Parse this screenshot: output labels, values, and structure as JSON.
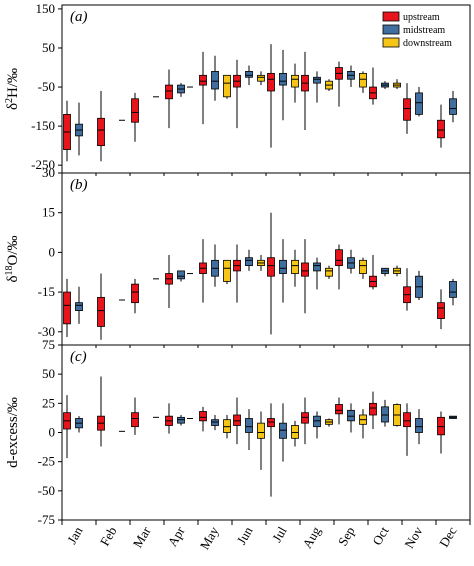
{
  "colors": {
    "upstream": "#e8141c",
    "midstream": "#3f6e9f",
    "downstream": "#f5c518",
    "line": "#000000"
  },
  "chart_data": [
    {
      "type": "box",
      "panel_label": "(a)",
      "ylabel_html": "δ<sup>2</sup>H/‰",
      "ylabel_parts": [
        "δ",
        "2",
        "H/‰"
      ],
      "ylim": [
        -270,
        160
      ],
      "yticks": [
        150,
        50,
        -50,
        -150,
        -250
      ],
      "categories": [
        "Jan",
        "Feb",
        "Mar",
        "Apr",
        "May",
        "Jun",
        "Jul",
        "Aug",
        "Sep",
        "Oct",
        "Nov",
        "Dec"
      ],
      "legend": {
        "position": "top-right",
        "entries": [
          "upstream",
          "midstream",
          "downstream"
        ]
      },
      "series": [
        {
          "name": "upstream",
          "boxes": [
            {
              "month": "Jan",
              "min": -240,
              "q1": -210,
              "median": -165,
              "q3": -120,
              "max": -85
            },
            {
              "month": "Feb",
              "min": -240,
              "q1": -200,
              "median": -160,
              "q3": -130,
              "max": -60
            },
            {
              "month": "Mar",
              "min": -190,
              "q1": -140,
              "median": -115,
              "q3": -80,
              "max": -65
            },
            {
              "month": "Apr",
              "min": -155,
              "q1": -80,
              "median": -60,
              "q3": -45,
              "max": -5
            },
            {
              "month": "May",
              "min": -145,
              "q1": -45,
              "median": -35,
              "q3": -20,
              "max": 40
            },
            {
              "month": "Jun",
              "min": -155,
              "q1": -50,
              "median": -35,
              "q3": -20,
              "max": 20
            },
            {
              "month": "Jul",
              "min": -205,
              "q1": -60,
              "median": -30,
              "q3": -15,
              "max": 60
            },
            {
              "month": "Aug",
              "min": -160,
              "q1": -60,
              "median": -40,
              "q3": -20,
              "max": 40
            },
            {
              "month": "Sep",
              "min": -100,
              "q1": -30,
              "median": -15,
              "q3": 0,
              "max": 15
            },
            {
              "month": "Oct",
              "min": -95,
              "q1": -80,
              "median": -65,
              "q3": -50,
              "max": 0
            },
            {
              "month": "Nov",
              "min": -170,
              "q1": -135,
              "median": -105,
              "q3": -80,
              "max": -40
            },
            {
              "month": "Dec",
              "min": -205,
              "q1": -180,
              "median": -160,
              "q3": -135,
              "max": -95
            }
          ]
        },
        {
          "name": "midstream",
          "boxes": [
            {
              "month": "Jan",
              "min": -225,
              "q1": -175,
              "median": -160,
              "q3": -145,
              "max": -90
            },
            {
              "month": "Apr",
              "min": -75,
              "q1": -65,
              "median": -55,
              "q3": -45,
              "max": -40
            },
            {
              "month": "May",
              "min": -85,
              "q1": -55,
              "median": -35,
              "q3": -10,
              "max": 30
            },
            {
              "month": "Jun",
              "min": -45,
              "q1": -25,
              "median": -20,
              "q3": -10,
              "max": 5
            },
            {
              "month": "Jul",
              "min": -135,
              "q1": -45,
              "median": -35,
              "q3": -15,
              "max": 45
            },
            {
              "month": "Aug",
              "min": -90,
              "q1": -40,
              "median": -30,
              "q3": -25,
              "max": -10
            },
            {
              "month": "Sep",
              "min": -50,
              "q1": -30,
              "median": -20,
              "q3": -10,
              "max": 5
            },
            {
              "month": "Oct",
              "min": -55,
              "q1": -50,
              "median": -45,
              "q3": -40,
              "max": -35
            },
            {
              "month": "Nov",
              "min": -125,
              "q1": -120,
              "median": -90,
              "q3": -65,
              "max": -50
            },
            {
              "month": "Dec",
              "min": -140,
              "q1": -120,
              "median": -105,
              "q3": -80,
              "max": -60
            }
          ]
        },
        {
          "name": "downstream",
          "boxes": [
            {
              "month": "May",
              "min": -80,
              "q1": -75,
              "median": -40,
              "q3": -20,
              "max": -20
            },
            {
              "month": "Jun",
              "min": -45,
              "q1": -35,
              "median": -25,
              "q3": -20,
              "max": -10
            },
            {
              "month": "Jul",
              "min": -90,
              "q1": -50,
              "median": -30,
              "q3": -20,
              "max": 10
            },
            {
              "month": "Aug",
              "min": -60,
              "q1": -55,
              "median": -45,
              "q3": -35,
              "max": -30
            },
            {
              "month": "Sep",
              "min": -65,
              "q1": -50,
              "median": -30,
              "q3": -15,
              "max": -10
            },
            {
              "month": "Oct",
              "min": -55,
              "q1": -50,
              "median": -45,
              "q3": -40,
              "max": -30
            }
          ]
        }
      ]
    },
    {
      "type": "box",
      "panel_label": "(b)",
      "ylabel_parts": [
        "δ",
        "18",
        "O/‰"
      ],
      "ylim": [
        -35,
        30
      ],
      "yticks": [
        30,
        15,
        0,
        -15,
        -30
      ],
      "categories": [
        "Jan",
        "Feb",
        "Mar",
        "Apr",
        "May",
        "Jun",
        "Jul",
        "Aug",
        "Sep",
        "Oct",
        "Nov",
        "Dec"
      ],
      "series": [
        {
          "name": "upstream",
          "boxes": [
            {
              "month": "Jan",
              "min": -32,
              "q1": -27,
              "median": -20,
              "q3": -15,
              "max": -10
            },
            {
              "month": "Feb",
              "min": -33,
              "q1": -28,
              "median": -22,
              "q3": -17,
              "max": -8
            },
            {
              "month": "Mar",
              "min": -23,
              "q1": -19,
              "median": -15,
              "q3": -12,
              "max": -10
            },
            {
              "month": "Apr",
              "min": -21,
              "q1": -12,
              "median": -10,
              "q3": -8,
              "max": -1
            },
            {
              "month": "May",
              "min": -19,
              "q1": -8,
              "median": -6,
              "q3": -4,
              "max": 5
            },
            {
              "month": "Jun",
              "min": -19,
              "q1": -7,
              "median": -5,
              "q3": -3,
              "max": 3
            },
            {
              "month": "Jul",
              "min": -31,
              "q1": -9,
              "median": -5,
              "q3": -2,
              "max": 15
            },
            {
              "month": "Aug",
              "min": -23,
              "q1": -9,
              "median": -7,
              "q3": -4,
              "max": 5
            },
            {
              "month": "Sep",
              "min": -14,
              "q1": -5,
              "median": -3,
              "q3": 1,
              "max": 3
            },
            {
              "month": "Oct",
              "min": -14,
              "q1": -13,
              "median": -11,
              "q3": -9,
              "max": -1
            },
            {
              "month": "Nov",
              "min": -22,
              "q1": -19,
              "median": -16,
              "q3": -13,
              "max": -6
            },
            {
              "month": "Dec",
              "min": -29,
              "q1": -25,
              "median": -21,
              "q3": -19,
              "max": -14
            }
          ]
        },
        {
          "name": "midstream",
          "boxes": [
            {
              "month": "Jan",
              "min": -27,
              "q1": -22,
              "median": -20,
              "q3": -19,
              "max": -13
            },
            {
              "month": "Apr",
              "min": -11,
              "q1": -10,
              "median": -9,
              "q3": -7,
              "max": -7
            },
            {
              "month": "May",
              "min": -13,
              "q1": -9,
              "median": -6,
              "q3": -3,
              "max": 3
            },
            {
              "month": "Jun",
              "min": -7,
              "q1": -5,
              "median": -3,
              "q3": -2,
              "max": 1
            },
            {
              "month": "Jul",
              "min": -19,
              "q1": -8,
              "median": -6,
              "q3": -3,
              "max": 5
            },
            {
              "month": "Aug",
              "min": -14,
              "q1": -7,
              "median": -5,
              "q3": -4,
              "max": -2
            },
            {
              "month": "Sep",
              "min": -8,
              "q1": -6,
              "median": -4,
              "q3": -2,
              "max": 1
            },
            {
              "month": "Oct",
              "min": -9,
              "q1": -8,
              "median": -7,
              "q3": -6,
              "max": -6
            },
            {
              "month": "Nov",
              "min": -18,
              "q1": -17,
              "median": -13,
              "q3": -9,
              "max": -7
            },
            {
              "month": "Dec",
              "min": -20,
              "q1": -17,
              "median": -15,
              "q3": -11,
              "max": -10
            }
          ]
        },
        {
          "name": "downstream",
          "boxes": [
            {
              "month": "May",
              "min": -12,
              "q1": -11,
              "median": -6,
              "q3": -3,
              "max": -3
            },
            {
              "month": "Jun",
              "min": -7,
              "q1": -5,
              "median": -4,
              "q3": -3,
              "max": -1
            },
            {
              "month": "Jul",
              "min": -13,
              "q1": -8,
              "median": -5,
              "q3": -3,
              "max": 1
            },
            {
              "month": "Aug",
              "min": -10,
              "q1": -9,
              "median": -7,
              "q3": -6,
              "max": -5
            },
            {
              "month": "Sep",
              "min": -10,
              "q1": -8,
              "median": -5,
              "q3": -3,
              "max": -2
            },
            {
              "month": "Oct",
              "min": -9,
              "q1": -8,
              "median": -7,
              "q3": -6,
              "max": -5
            }
          ]
        }
      ]
    },
    {
      "type": "box",
      "panel_label": "(c)",
      "ylabel": "d-excess/‰",
      "ylim": [
        -75,
        75
      ],
      "yticks": [
        75,
        50,
        25,
        0,
        -25,
        -50,
        -75
      ],
      "categories": [
        "Jan",
        "Feb",
        "Mar",
        "Apr",
        "May",
        "Jun",
        "Jul",
        "Aug",
        "Sep",
        "Oct",
        "Nov",
        "Dec"
      ],
      "series": [
        {
          "name": "upstream",
          "boxes": [
            {
              "month": "Jan",
              "min": -22,
              "q1": 3,
              "median": 10,
              "q3": 17,
              "max": 32
            },
            {
              "month": "Feb",
              "min": -12,
              "q1": 2,
              "median": 8,
              "q3": 14,
              "max": 48
            },
            {
              "month": "Mar",
              "min": -2,
              "q1": 5,
              "median": 12,
              "q3": 17,
              "max": 30
            },
            {
              "month": "Apr",
              "min": -1,
              "q1": 6,
              "median": 10,
              "q3": 14,
              "max": 25
            },
            {
              "month": "May",
              "min": 1,
              "q1": 10,
              "median": 13,
              "q3": 18,
              "max": 22
            },
            {
              "month": "Jun",
              "min": -10,
              "q1": 6,
              "median": 10,
              "q3": 15,
              "max": 30
            },
            {
              "month": "Jul",
              "min": -55,
              "q1": 5,
              "median": 9,
              "q3": 12,
              "max": 25
            },
            {
              "month": "Aug",
              "min": -10,
              "q1": 8,
              "median": 13,
              "q3": 17,
              "max": 30
            },
            {
              "month": "Sep",
              "min": 7,
              "q1": 16,
              "median": 19,
              "q3": 24,
              "max": 30
            },
            {
              "month": "Oct",
              "min": 3,
              "q1": 15,
              "median": 21,
              "q3": 25,
              "max": 35
            },
            {
              "month": "Nov",
              "min": -20,
              "q1": 5,
              "median": 10,
              "q3": 17,
              "max": 25
            },
            {
              "month": "Dec",
              "min": -18,
              "q1": -2,
              "median": 5,
              "q3": 13,
              "max": 18
            }
          ]
        },
        {
          "name": "midstream",
          "boxes": [
            {
              "month": "Jan",
              "min": 0,
              "q1": 4,
              "median": 8,
              "q3": 12,
              "max": 14
            },
            {
              "month": "Apr",
              "min": 6,
              "q1": 8,
              "median": 11,
              "q3": 13,
              "max": 15
            },
            {
              "month": "May",
              "min": 2,
              "q1": 6,
              "median": 9,
              "q3": 11,
              "max": 15
            },
            {
              "month": "Jun",
              "min": -15,
              "q1": 0,
              "median": 5,
              "q3": 12,
              "max": 20
            },
            {
              "month": "Jul",
              "min": -25,
              "q1": -5,
              "median": 2,
              "q3": 8,
              "max": 25
            },
            {
              "month": "Aug",
              "min": -5,
              "q1": 5,
              "median": 10,
              "q3": 14,
              "max": 18
            },
            {
              "month": "Sep",
              "min": 0,
              "q1": 10,
              "median": 14,
              "q3": 19,
              "max": 25
            },
            {
              "month": "Oct",
              "min": 5,
              "q1": 9,
              "median": 15,
              "q3": 22,
              "max": 28
            },
            {
              "month": "Nov",
              "min": -10,
              "q1": 0,
              "median": 5,
              "q3": 12,
              "max": 20
            },
            {
              "month": "Dec",
              "min": 12,
              "q1": 12,
              "median": 13,
              "q3": 14,
              "max": 14
            }
          ]
        },
        {
          "name": "downstream",
          "boxes": [
            {
              "month": "May",
              "min": -5,
              "q1": 0,
              "median": 5,
              "q3": 11,
              "max": 15
            },
            {
              "month": "Jun",
              "min": -32,
              "q1": -5,
              "median": 0,
              "q3": 8,
              "max": 18
            },
            {
              "month": "Jul",
              "min": -12,
              "q1": -5,
              "median": 0,
              "q3": 6,
              "max": 10
            },
            {
              "month": "Aug",
              "min": 5,
              "q1": 7,
              "median": 9,
              "q3": 11,
              "max": 12
            },
            {
              "month": "Sep",
              "min": -5,
              "q1": 7,
              "median": 11,
              "q3": 15,
              "max": 20
            },
            {
              "month": "Oct",
              "min": 5,
              "q1": 6,
              "median": 15,
              "q3": 24,
              "max": 25
            }
          ]
        }
      ]
    }
  ]
}
